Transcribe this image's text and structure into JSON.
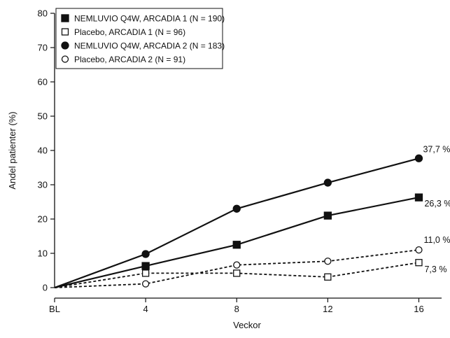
{
  "chart_data": {
    "type": "line",
    "title": "",
    "xlabel": "Veckor",
    "ylabel": "Andel patienter (%)",
    "x": [
      0,
      4,
      8,
      12,
      16
    ],
    "x_tick_labels": [
      "BL",
      "4",
      "8",
      "12",
      "16"
    ],
    "xlim": [
      0,
      17
    ],
    "ylim": [
      0,
      80
    ],
    "y_ticks": [
      0,
      10,
      20,
      30,
      40,
      50,
      60,
      70,
      80
    ],
    "grid": false,
    "legend_position": "top-left",
    "series": [
      {
        "name": "NEMLUVIO Q4W, ARCADIA 1 (N = 190)",
        "marker": "square-filled",
        "line": "solid",
        "values": [
          0,
          6.3,
          12.5,
          21.0,
          26.3
        ],
        "end_label": "26,3 %"
      },
      {
        "name": "Placebo, ARCADIA 1 (N = 96)",
        "marker": "square-open",
        "line": "dashed",
        "values": [
          0,
          4.2,
          4.2,
          3.1,
          7.3
        ],
        "end_label": "7,3 %"
      },
      {
        "name": "NEMLUVIO Q4W, ARCADIA 2 (N = 183)",
        "marker": "circle-filled",
        "line": "solid",
        "values": [
          0,
          9.8,
          23.0,
          30.6,
          37.7
        ],
        "end_label": "37,7 %"
      },
      {
        "name": "Placebo, ARCADIA 2 (N = 91)",
        "marker": "circle-open",
        "line": "dashed",
        "values": [
          0,
          1.1,
          6.6,
          7.7,
          11.0
        ],
        "end_label": "11,0 %"
      }
    ]
  }
}
